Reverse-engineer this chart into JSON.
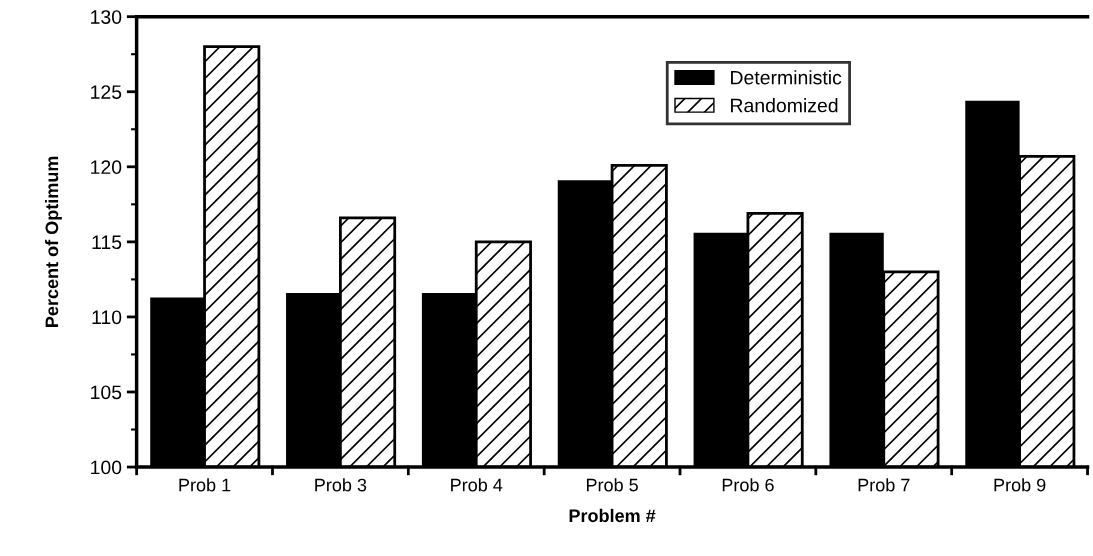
{
  "chart_data": {
    "type": "bar",
    "xlabel": "Problem #",
    "ylabel": "Percent of Optimum",
    "categories": [
      "Prob 1",
      "Prob 3",
      "Prob 4",
      "Prob 5",
      "Prob 6",
      "Prob 7",
      "Prob 9"
    ],
    "series": [
      {
        "name": "Deterministic",
        "color": "#000000",
        "values": [
          111.3,
          111.6,
          111.6,
          119.1,
          115.6,
          115.6,
          124.4
        ]
      },
      {
        "name": "Randomized",
        "color": "#ffffff",
        "values": [
          128.0,
          116.6,
          115.0,
          120.1,
          116.9,
          113.0,
          120.7
        ]
      }
    ],
    "ylim": [
      100,
      130
    ],
    "yticks": [
      100,
      105,
      110,
      115,
      120,
      125,
      130
    ],
    "grid": false,
    "legend": "top right"
  }
}
